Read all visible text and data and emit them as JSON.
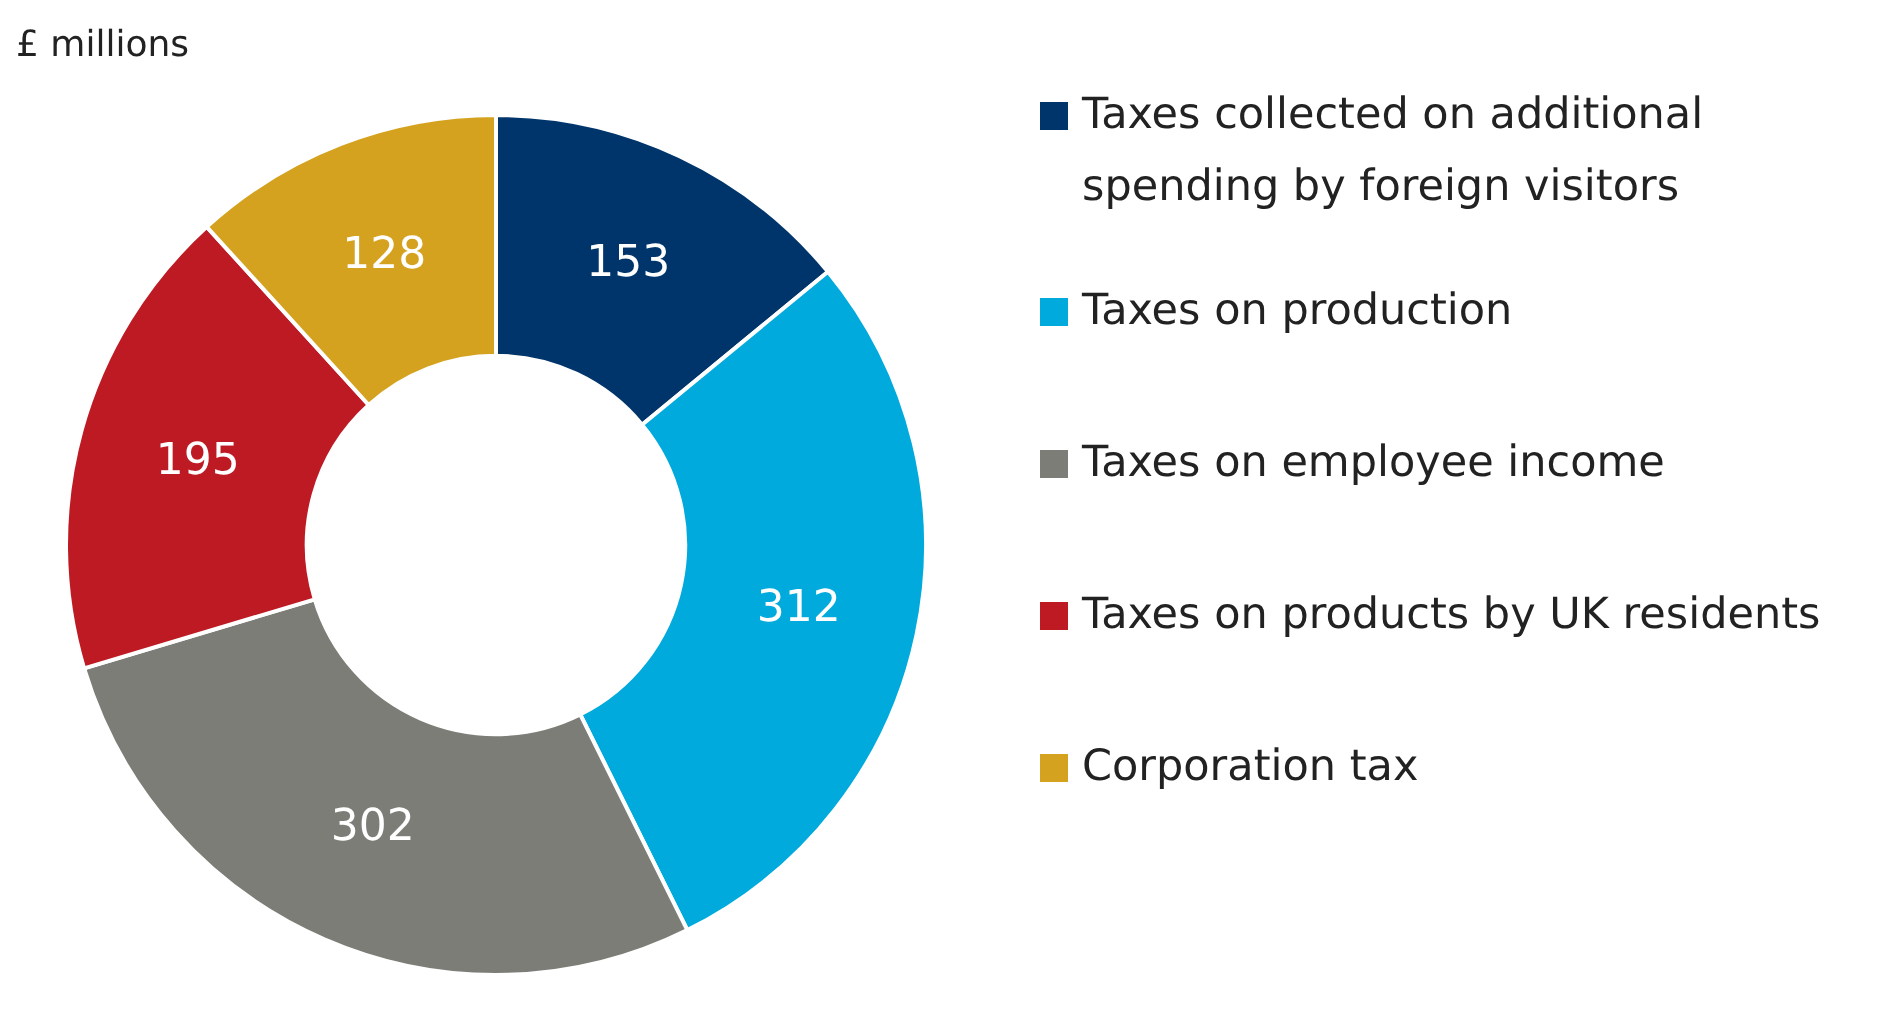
{
  "chart_data": {
    "type": "donut",
    "annotations": [
      "£ millions"
    ],
    "categories": [
      "Taxes collected on additional spending by foreign visitors",
      "Taxes on production",
      "Taxes on employee income",
      "Taxes on products by UK residents",
      "Corporation tax"
    ],
    "values": [
      153,
      312,
      302,
      195,
      128
    ],
    "colors": [
      "#00356b",
      "#00aadd",
      "#7d7d78",
      "#be1a24",
      "#d4a21e"
    ],
    "legend": "right",
    "data_labels": true
  }
}
